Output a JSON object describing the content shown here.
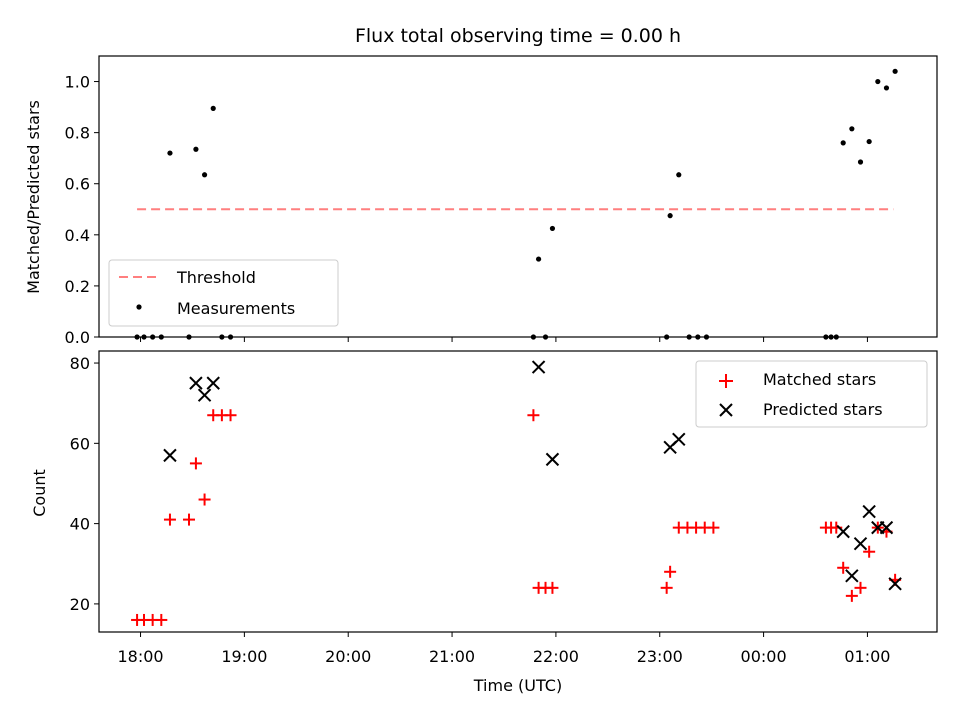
{
  "chart_data": [
    {
      "type": "scatter",
      "title": "Flux total observing time = 0.00 h",
      "xlabel": "",
      "ylabel": "Matched/Predicted stars",
      "xlim_hours": [
        17.6,
        25.67
      ],
      "ylim": [
        0,
        1.1
      ],
      "yticks": [
        "0.0",
        "0.2",
        "0.4",
        "0.6",
        "0.8",
        "1.0"
      ],
      "grid": false,
      "legend_position": "lower-left",
      "threshold": {
        "name": "Threshold",
        "value": 0.5,
        "x_from": "17:58",
        "x_to": "01:15",
        "color": "#ff7f7f"
      },
      "series": [
        {
          "name": "Measurements",
          "color": "#000000",
          "points": [
            [
              "17:58",
              0.0
            ],
            [
              "18:02",
              0.0
            ],
            [
              "18:07",
              0.0
            ],
            [
              "18:12",
              0.0
            ],
            [
              "18:17",
              0.72
            ],
            [
              "18:28",
              0.0
            ],
            [
              "18:32",
              0.735
            ],
            [
              "18:37",
              0.635
            ],
            [
              "18:42",
              0.895
            ],
            [
              "18:47",
              0.0
            ],
            [
              "18:52",
              0.0
            ],
            [
              "21:47",
              0.0
            ],
            [
              "21:50",
              0.305
            ],
            [
              "21:54",
              0.0
            ],
            [
              "21:58",
              0.425
            ],
            [
              "23:04",
              0.0
            ],
            [
              "23:06",
              0.475
            ],
            [
              "23:11",
              0.635
            ],
            [
              "23:17",
              0.0
            ],
            [
              "23:22",
              0.0
            ],
            [
              "23:27",
              0.0
            ],
            [
              "00:36",
              0.0
            ],
            [
              "00:39",
              0.0
            ],
            [
              "00:42",
              0.0
            ],
            [
              "00:46",
              0.76
            ],
            [
              "00:51",
              0.815
            ],
            [
              "00:56",
              0.685
            ],
            [
              "01:01",
              0.765
            ],
            [
              "01:06",
              1.0
            ],
            [
              "01:11",
              0.975
            ],
            [
              "01:16",
              1.04
            ]
          ]
        }
      ]
    },
    {
      "type": "scatter",
      "title": "",
      "xlabel": "Time (UTC)",
      "ylabel": "Count",
      "xlim_hours": [
        17.6,
        25.67
      ],
      "ylim": [
        13,
        83
      ],
      "yticks": [
        "20",
        "40",
        "60",
        "80"
      ],
      "xticks": [
        "18:00",
        "19:00",
        "20:00",
        "21:00",
        "22:00",
        "23:00",
        "00:00",
        "01:00"
      ],
      "grid": false,
      "legend_position": "top-right",
      "series": [
        {
          "name": "Matched stars",
          "marker": "plus",
          "color": "#ff0000",
          "points": [
            [
              "17:58",
              16
            ],
            [
              "18:02",
              16
            ],
            [
              "18:07",
              16
            ],
            [
              "18:12",
              16
            ],
            [
              "18:17",
              41
            ],
            [
              "18:28",
              41
            ],
            [
              "18:32",
              55
            ],
            [
              "18:37",
              46
            ],
            [
              "18:42",
              67
            ],
            [
              "18:47",
              67
            ],
            [
              "18:52",
              67
            ],
            [
              "21:47",
              67
            ],
            [
              "21:50",
              24
            ],
            [
              "21:54",
              24
            ],
            [
              "21:58",
              24
            ],
            [
              "23:04",
              24
            ],
            [
              "23:06",
              28
            ],
            [
              "23:11",
              39
            ],
            [
              "23:16",
              39
            ],
            [
              "23:21",
              39
            ],
            [
              "23:26",
              39
            ],
            [
              "23:31",
              39
            ],
            [
              "00:36",
              39
            ],
            [
              "00:39",
              39
            ],
            [
              "00:42",
              39
            ],
            [
              "00:46",
              29
            ],
            [
              "00:51",
              22
            ],
            [
              "00:56",
              24
            ],
            [
              "01:01",
              33
            ],
            [
              "01:06",
              39
            ],
            [
              "01:11",
              38
            ],
            [
              "01:16",
              26
            ]
          ]
        },
        {
          "name": "Predicted stars",
          "marker": "x",
          "color": "#000000",
          "points": [
            [
              "18:17",
              57
            ],
            [
              "18:32",
              75
            ],
            [
              "18:37",
              72
            ],
            [
              "18:42",
              75
            ],
            [
              "21:50",
              79
            ],
            [
              "21:58",
              56
            ],
            [
              "23:06",
              59
            ],
            [
              "23:11",
              61
            ],
            [
              "00:46",
              38
            ],
            [
              "00:51",
              27
            ],
            [
              "00:56",
              35
            ],
            [
              "01:01",
              43
            ],
            [
              "01:06",
              39
            ],
            [
              "01:11",
              39
            ],
            [
              "01:16",
              25
            ]
          ]
        }
      ]
    }
  ]
}
